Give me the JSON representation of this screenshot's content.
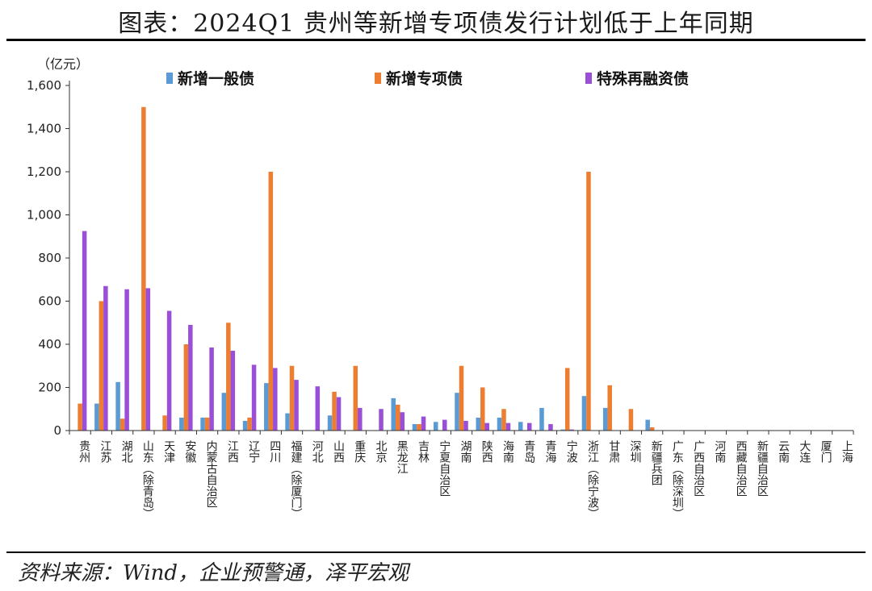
{
  "page": {
    "title": "图表：2024Q1 贵州等新增专项债发行计划低于上年同期",
    "source": "资料来源：Wind，企业预警通，泽平宏观"
  },
  "chart_data": {
    "type": "bar",
    "unit_label": "（亿元）",
    "ylim": [
      0,
      1600
    ],
    "y_ticks": [
      0,
      200,
      400,
      600,
      800,
      1000,
      1200,
      1400,
      1600
    ],
    "y_tick_labels": [
      "0",
      "200",
      "400",
      "600",
      "800",
      "1,000",
      "1,200",
      "1,400",
      "1,600"
    ],
    "legend_placement": "top",
    "categories": [
      "贵州",
      "江苏",
      "湖北",
      "山东（除青岛）",
      "天津",
      "安徽",
      "内蒙古自治区",
      "江西",
      "辽宁",
      "四川",
      "福建（除厦门）",
      "河北",
      "山西",
      "重庆",
      "北京",
      "黑龙江",
      "吉林",
      "宁夏自治区",
      "湖南",
      "陕西",
      "海南",
      "青岛",
      "青海",
      "宁波",
      "浙江（除宁波）",
      "甘肃",
      "深圳",
      "新疆兵团",
      "广东（除深圳）",
      "广西自治区",
      "河南",
      "西藏自治区",
      "新疆自治区",
      "云南",
      "大连",
      "厦门",
      "上海"
    ],
    "series": [
      {
        "name": "新增一般债",
        "color": "#5B9BD5",
        "values": [
          0,
          125,
          225,
          0,
          0,
          60,
          60,
          175,
          45,
          220,
          80,
          0,
          70,
          0,
          0,
          150,
          30,
          40,
          175,
          60,
          60,
          40,
          105,
          5,
          160,
          105,
          0,
          50,
          0,
          0,
          0,
          0,
          0,
          0,
          0,
          0,
          0
        ]
      },
      {
        "name": "新增专项债",
        "color": "#ED7D31",
        "values": [
          125,
          600,
          55,
          1500,
          70,
          400,
          60,
          500,
          60,
          1200,
          300,
          0,
          180,
          300,
          0,
          120,
          30,
          0,
          300,
          200,
          100,
          0,
          0,
          290,
          1200,
          210,
          100,
          15,
          0,
          0,
          0,
          0,
          0,
          0,
          0,
          0,
          0
        ]
      },
      {
        "name": "特殊再融资债",
        "color": "#9A4FD6",
        "values": [
          925,
          670,
          655,
          660,
          555,
          490,
          385,
          370,
          305,
          290,
          235,
          205,
          155,
          105,
          100,
          85,
          65,
          50,
          45,
          35,
          35,
          35,
          30,
          5,
          0,
          0,
          0,
          0,
          0,
          0,
          0,
          0,
          0,
          0,
          0,
          0,
          0
        ]
      }
    ]
  }
}
